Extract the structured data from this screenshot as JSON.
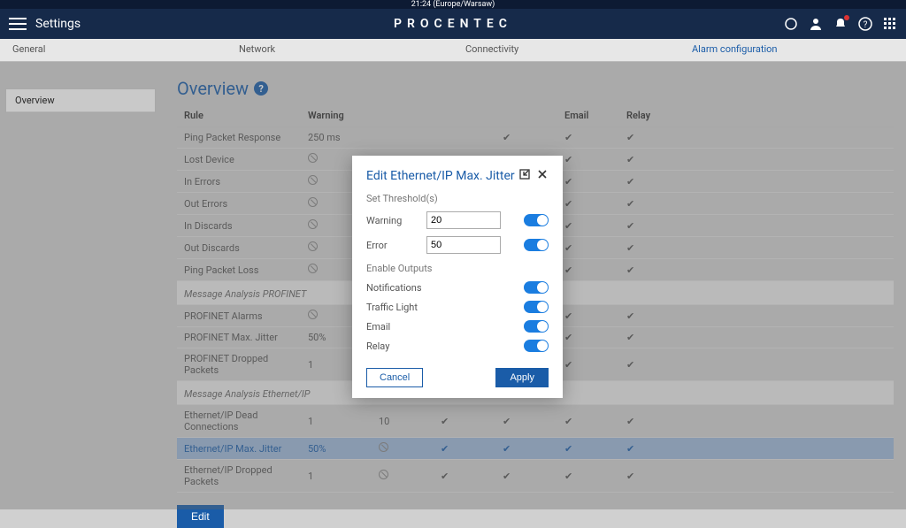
{
  "topbar": {
    "clock": "21:24 (Europe/Warsaw)"
  },
  "header": {
    "settings": "Settings",
    "brand": "PROCENTEC"
  },
  "tabs": {
    "items": [
      "General",
      "Network",
      "Connectivity",
      "Alarm configuration"
    ],
    "active": 3
  },
  "sidebar": {
    "items": [
      "Overview"
    ]
  },
  "overview": {
    "heading": "Overview",
    "columns": [
      "Rule",
      "Warning",
      "",
      "",
      "",
      "Email",
      "Relay"
    ],
    "rows": [
      {
        "rule": "Ping Packet Response",
        "warning": "250 ms",
        "c3": "",
        "c4": "",
        "c5": "chk",
        "email": "chk",
        "relay": "chk"
      },
      {
        "rule": "Lost Device",
        "warning": "ban",
        "c3": "",
        "c4": "",
        "c5": "chk",
        "email": "chk",
        "relay": "chk"
      },
      {
        "rule": "In Errors",
        "warning": "ban",
        "c3": "",
        "c4": "",
        "c5": "chk",
        "email": "chk",
        "relay": "chk"
      },
      {
        "rule": "Out Errors",
        "warning": "ban",
        "c3": "",
        "c4": "",
        "c5": "chk",
        "email": "chk",
        "relay": "chk"
      },
      {
        "rule": "In Discards",
        "warning": "ban",
        "c3": "",
        "c4": "",
        "c5": "chk",
        "email": "chk",
        "relay": "chk"
      },
      {
        "rule": "Out Discards",
        "warning": "ban",
        "c3": "",
        "c4": "",
        "c5": "chk",
        "email": "chk",
        "relay": "chk"
      },
      {
        "rule": "Ping Packet Loss",
        "warning": "ban",
        "c3": "",
        "c4": "",
        "c5": "chk",
        "email": "chk",
        "relay": "chk"
      }
    ],
    "section1": "Message Analysis PROFINET",
    "rows2": [
      {
        "rule": "PROFINET Alarms",
        "warning": "ban",
        "c3": "",
        "c4": "",
        "c5": "chk",
        "email": "chk",
        "relay": "chk"
      },
      {
        "rule": "PROFINET Max. Jitter",
        "warning": "50%",
        "c3": "",
        "c4": "",
        "c5": "chk",
        "email": "chk",
        "relay": "chk"
      },
      {
        "rule": "PROFINET Dropped Packets",
        "warning": "1",
        "c3": "",
        "c4": "",
        "c5": "chk",
        "email": "chk",
        "relay": "chk"
      }
    ],
    "section2": "Message Analysis Ethernet/IP",
    "rows3": [
      {
        "rule": "Ethernet/IP Dead Connections",
        "warning": "1",
        "c3": "10",
        "c4": "chk",
        "c5": "chk",
        "email": "chk",
        "relay": "chk",
        "selected": false
      },
      {
        "rule": "Ethernet/IP Max. Jitter",
        "warning": "50%",
        "c3": "ban",
        "c4": "chk-on",
        "c5": "chk-on",
        "email": "chk-on",
        "relay": "chk-on",
        "selected": true
      },
      {
        "rule": "Ethernet/IP Dropped Packets",
        "warning": "1",
        "c3": "ban",
        "c4": "chk",
        "c5": "chk",
        "email": "chk",
        "relay": "chk",
        "selected": false
      }
    ],
    "edit_btn": "Edit"
  },
  "modal": {
    "title": "Edit Ethernet/IP Max. Jitter",
    "section_thresholds": "Set Threshold(s)",
    "warning_label": "Warning",
    "warning_value": "20",
    "error_label": "Error",
    "error_value": "50",
    "section_outputs": "Enable Outputs",
    "outputs": [
      "Notifications",
      "Traffic Light",
      "Email",
      "Relay"
    ],
    "cancel": "Cancel",
    "apply": "Apply"
  }
}
